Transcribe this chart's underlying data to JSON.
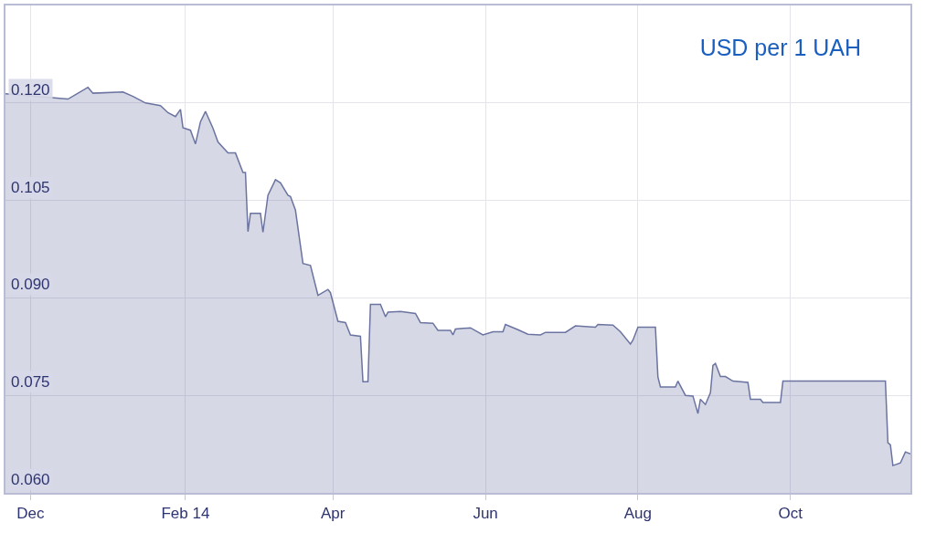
{
  "chart_data": {
    "type": "area",
    "title": "USD per 1 UAH",
    "x": [
      "2013-11-21",
      "2013-12-16",
      "2013-12-20",
      "2013-12-24",
      "2013-12-26",
      "2014-01-07",
      "2014-01-11",
      "2014-01-16",
      "2014-01-22",
      "2014-01-25",
      "2014-01-28",
      "2014-01-30",
      "2014-01-31",
      "2014-02-03",
      "2014-02-05",
      "2014-02-07",
      "2014-02-09",
      "2014-02-12",
      "2014-02-14",
      "2014-02-18",
      "2014-02-21",
      "2014-02-24",
      "2014-02-25",
      "2014-02-26",
      "2014-02-27",
      "2014-03-03",
      "2014-03-04",
      "2014-03-06",
      "2014-03-09",
      "2014-03-11",
      "2014-03-14",
      "2014-03-15",
      "2014-03-17",
      "2014-03-20",
      "2014-03-23",
      "2014-03-26",
      "2014-03-30",
      "2014-03-31",
      "2014-04-03",
      "2014-04-06",
      "2014-04-08",
      "2014-04-12",
      "2014-04-13",
      "2014-04-15",
      "2014-04-16",
      "2014-04-20",
      "2014-04-22",
      "2014-04-23",
      "2014-04-28",
      "2014-05-04",
      "2014-05-06",
      "2014-05-11",
      "2014-05-13",
      "2014-05-18",
      "2014-05-19",
      "2014-05-20",
      "2014-05-26",
      "2014-05-31",
      "2014-06-04",
      "2014-06-08",
      "2014-06-09",
      "2014-06-14",
      "2014-06-18",
      "2014-06-23",
      "2014-06-25",
      "2014-07-03",
      "2014-07-07",
      "2014-07-15",
      "2014-07-16",
      "2014-07-22",
      "2014-07-25",
      "2014-07-29",
      "2014-07-30",
      "2014-08-01",
      "2014-08-08",
      "2014-08-09",
      "2014-08-10",
      "2014-08-16",
      "2014-08-17",
      "2014-08-20",
      "2014-08-23",
      "2014-08-25",
      "2014-08-26",
      "2014-08-28",
      "2014-08-30",
      "2014-08-31",
      "2014-09-01",
      "2014-09-03",
      "2014-09-05",
      "2014-09-08",
      "2014-09-14",
      "2014-09-15",
      "2014-09-19",
      "2014-09-20",
      "2014-09-27",
      "2014-09-28",
      "2014-11-08",
      "2014-11-09",
      "2014-11-10",
      "2014-11-11",
      "2014-11-14",
      "2014-11-16",
      "2014-11-18"
    ],
    "series": [
      {
        "color": "#6b74a0",
        "values": [
          0.1214,
          0.1206,
          0.1215,
          0.1224,
          0.1215,
          0.1217,
          0.121,
          0.12,
          0.1196,
          0.1185,
          0.1179,
          0.119,
          0.1162,
          0.1158,
          0.1137,
          0.1171,
          0.1187,
          0.1161,
          0.114,
          0.1123,
          0.1123,
          0.1093,
          0.1093,
          0.1002,
          0.103,
          0.103,
          0.1001,
          0.1058,
          0.1082,
          0.1077,
          0.1058,
          0.1056,
          0.1035,
          0.0953,
          0.095,
          0.0904,
          0.0913,
          0.0908,
          0.0864,
          0.0862,
          0.0843,
          0.0841,
          0.0771,
          0.0771,
          0.089,
          0.089,
          0.0871,
          0.0878,
          0.0879,
          0.0876,
          0.0862,
          0.0861,
          0.085,
          0.085,
          0.0843,
          0.0852,
          0.0854,
          0.0843,
          0.0848,
          0.0848,
          0.0859,
          0.0851,
          0.0844,
          0.0843,
          0.0847,
          0.0847,
          0.0857,
          0.0855,
          0.0859,
          0.0858,
          0.0848,
          0.0829,
          0.0835,
          0.0855,
          0.0855,
          0.0778,
          0.0763,
          0.0763,
          0.0772,
          0.075,
          0.0749,
          0.0722,
          0.0744,
          0.0736,
          0.0754,
          0.0796,
          0.0799,
          0.0779,
          0.0779,
          0.0772,
          0.077,
          0.0744,
          0.0744,
          0.0739,
          0.0739,
          0.0772,
          0.0772,
          0.0677,
          0.0674,
          0.0642,
          0.0646,
          0.0663,
          0.066
        ]
      }
    ],
    "xlim": [
      "2013-11-21",
      "2014-11-18"
    ],
    "xticks": [
      {
        "value": "2013-12-01",
        "label": "Dec"
      },
      {
        "value": "2014-02-01",
        "label": "Feb 14"
      },
      {
        "value": "2014-04-01",
        "label": "Apr"
      },
      {
        "value": "2014-06-01",
        "label": "Jun"
      },
      {
        "value": "2014-08-01",
        "label": "Aug"
      },
      {
        "value": "2014-10-01",
        "label": "Oct"
      }
    ],
    "ylim": [
      0.06,
      0.135
    ],
    "yticks": [
      {
        "value": 0.06,
        "label": "0.060"
      },
      0.075,
      {
        "value": 0.09,
        "label": "0.090"
      },
      0.105,
      {
        "value": 0.12,
        "label": "0.120"
      }
    ],
    "grid": true
  }
}
